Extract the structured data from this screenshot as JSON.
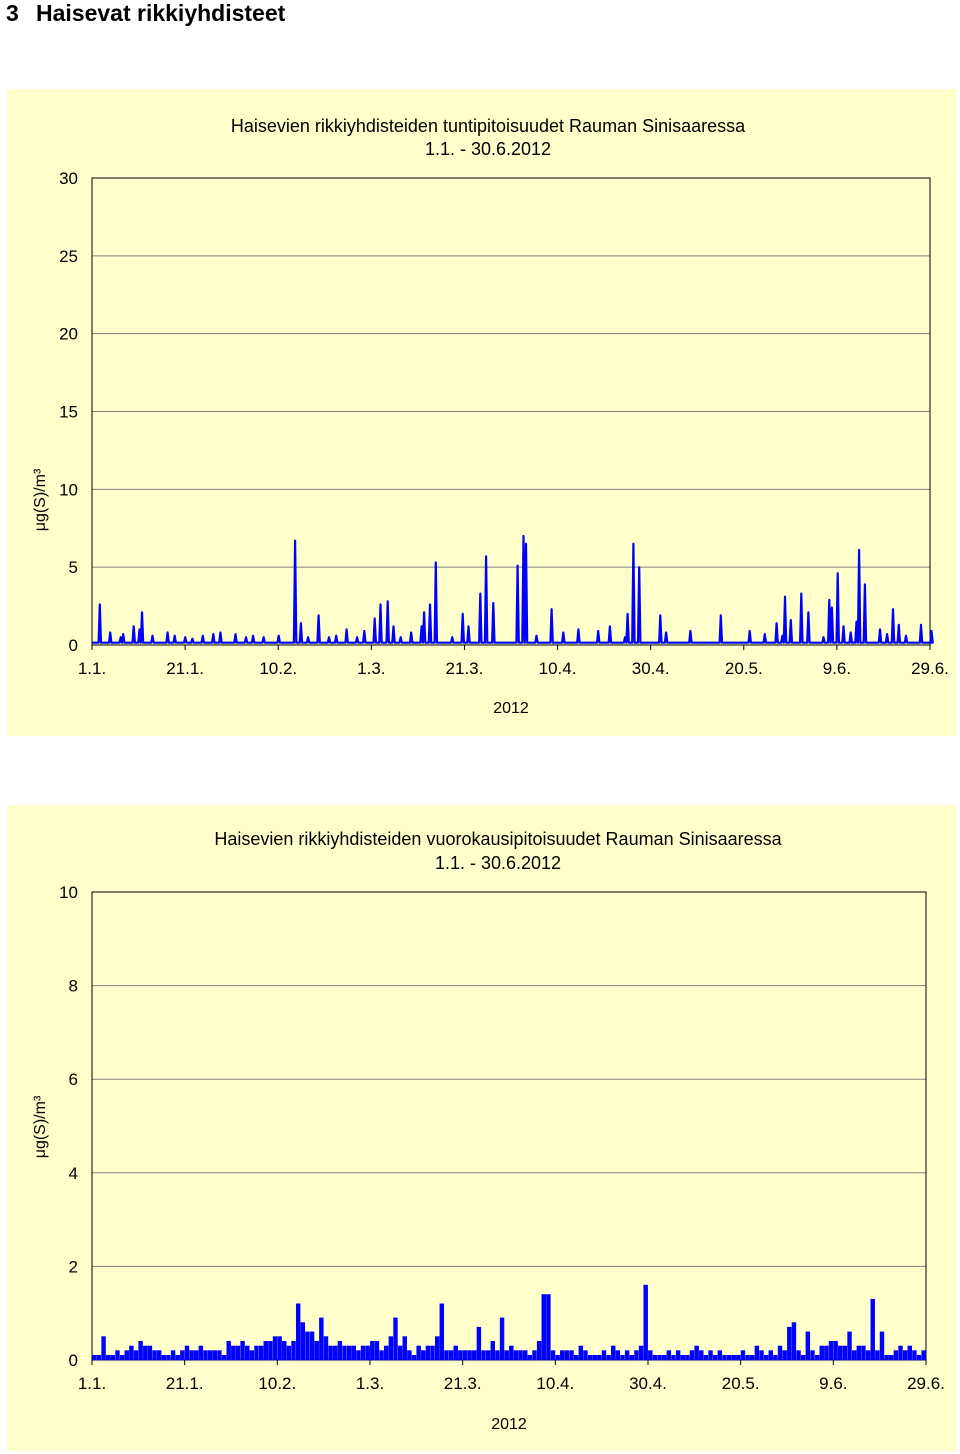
{
  "page": {
    "section_number": "3",
    "section_title": "Haisevat rikkiyhdisteet"
  },
  "chart_data": [
    {
      "type": "line",
      "title": "Haisevien rikkiyhdisteiden tuntipitoisuudet Rauman Sinisaaressa",
      "subtitle": "1.1. - 30.6.2012",
      "xlabel": "2012",
      "ylabel": "μg(S)/m³",
      "ylim": [
        0,
        30
      ],
      "yticks": [
        0,
        5,
        10,
        15,
        20,
        25,
        30
      ],
      "xlim": [
        "2012-01-01",
        "2012-06-30"
      ],
      "xtick_labels": [
        "1.1.",
        "21.1.",
        "10.2.",
        "1.3.",
        "21.3.",
        "10.4.",
        "30.4.",
        "20.5.",
        "9.6.",
        "29.6."
      ],
      "grid": "horizontal",
      "color": "#0000ff",
      "baseline": 0.15,
      "spikes": [
        [
          "2012-01-03",
          2.6
        ],
        [
          "2012-01-05",
          0.8
        ],
        [
          "2012-01-07",
          0.5
        ],
        [
          "2012-01-08",
          0.7
        ],
        [
          "2012-01-10",
          1.2
        ],
        [
          "2012-01-11",
          1.0
        ],
        [
          "2012-01-12",
          2.1
        ],
        [
          "2012-01-14",
          0.6
        ],
        [
          "2012-01-17",
          0.8
        ],
        [
          "2012-01-19",
          0.6
        ],
        [
          "2012-01-21",
          0.5
        ],
        [
          "2012-01-23",
          0.4
        ],
        [
          "2012-01-25",
          0.6
        ],
        [
          "2012-01-27",
          0.7
        ],
        [
          "2012-01-29",
          0.8
        ],
        [
          "2012-02-01",
          0.7
        ],
        [
          "2012-02-03",
          0.5
        ],
        [
          "2012-02-05",
          0.6
        ],
        [
          "2012-02-07",
          0.5
        ],
        [
          "2012-02-10",
          0.6
        ],
        [
          "2012-02-14",
          6.7
        ],
        [
          "2012-02-15",
          1.4
        ],
        [
          "2012-02-17",
          0.5
        ],
        [
          "2012-02-19",
          1.9
        ],
        [
          "2012-02-21",
          0.5
        ],
        [
          "2012-02-23",
          0.6
        ],
        [
          "2012-02-25",
          1.0
        ],
        [
          "2012-02-27",
          0.5
        ],
        [
          "2012-02-29",
          0.9
        ],
        [
          "2012-03-02",
          1.7
        ],
        [
          "2012-03-03",
          2.6
        ],
        [
          "2012-03-05",
          2.8
        ],
        [
          "2012-03-06",
          1.2
        ],
        [
          "2012-03-08",
          0.5
        ],
        [
          "2012-03-10",
          0.8
        ],
        [
          "2012-03-12",
          1.2
        ],
        [
          "2012-03-13",
          2.1
        ],
        [
          "2012-03-14",
          2.6
        ],
        [
          "2012-03-15",
          5.3
        ],
        [
          "2012-03-19",
          0.5
        ],
        [
          "2012-03-21",
          2.0
        ],
        [
          "2012-03-22",
          1.2
        ],
        [
          "2012-03-25",
          3.3
        ],
        [
          "2012-03-26",
          5.7
        ],
        [
          "2012-03-28",
          2.7
        ],
        [
          "2012-04-02",
          5.1
        ],
        [
          "2012-04-03",
          7.0
        ],
        [
          "2012-04-04",
          6.5
        ],
        [
          "2012-04-06",
          0.6
        ],
        [
          "2012-04-09",
          2.3
        ],
        [
          "2012-04-12",
          0.8
        ],
        [
          "2012-04-15",
          1.0
        ],
        [
          "2012-04-19",
          0.9
        ],
        [
          "2012-04-22",
          1.2
        ],
        [
          "2012-04-25",
          0.5
        ],
        [
          "2012-04-26",
          2.0
        ],
        [
          "2012-04-27",
          6.5
        ],
        [
          "2012-04-28",
          5.0
        ],
        [
          "2012-05-03",
          1.9
        ],
        [
          "2012-05-04",
          0.8
        ],
        [
          "2012-05-09",
          0.9
        ],
        [
          "2012-05-16",
          1.9
        ],
        [
          "2012-05-22",
          0.9
        ],
        [
          "2012-05-25",
          0.7
        ],
        [
          "2012-05-28",
          1.4
        ],
        [
          "2012-05-29",
          0.6
        ],
        [
          "2012-05-30",
          3.1
        ],
        [
          "2012-05-31",
          1.6
        ],
        [
          "2012-06-02",
          3.3
        ],
        [
          "2012-06-04",
          2.1
        ],
        [
          "2012-06-07",
          0.5
        ],
        [
          "2012-06-08",
          2.9
        ],
        [
          "2012-06-09",
          2.4
        ],
        [
          "2012-06-10",
          4.6
        ],
        [
          "2012-06-11",
          1.2
        ],
        [
          "2012-06-13",
          0.8
        ],
        [
          "2012-06-14",
          1.5
        ],
        [
          "2012-06-15",
          6.1
        ],
        [
          "2012-06-16",
          3.9
        ],
        [
          "2012-06-19",
          1.0
        ],
        [
          "2012-06-21",
          0.7
        ],
        [
          "2012-06-22",
          2.3
        ],
        [
          "2012-06-23",
          1.3
        ],
        [
          "2012-06-25",
          0.6
        ],
        [
          "2012-06-28",
          1.3
        ],
        [
          "2012-06-30",
          0.9
        ]
      ]
    },
    {
      "type": "bar",
      "title": "Haisevien rikkiyhdisteiden vuorokausipitoisuudet Rauman Sinisaaressa",
      "subtitle": "1.1. - 30.6.2012",
      "xlabel": "2012",
      "ylabel": "μg(S)/m³",
      "ylim": [
        0,
        10
      ],
      "yticks": [
        0,
        2,
        4,
        6,
        8,
        10
      ],
      "xlim": [
        "2012-01-01",
        "2012-06-30"
      ],
      "xtick_labels": [
        "1.1.",
        "21.1.",
        "10.2.",
        "1.3.",
        "21.3.",
        "10.4.",
        "30.4.",
        "20.5.",
        "9.6.",
        "29.6."
      ],
      "grid": "horizontal",
      "color": "#0000ff",
      "values": [
        0.1,
        0.1,
        0.5,
        0.1,
        0.1,
        0.2,
        0.1,
        0.2,
        0.3,
        0.2,
        0.4,
        0.3,
        0.3,
        0.2,
        0.2,
        0.1,
        0.1,
        0.2,
        0.1,
        0.2,
        0.3,
        0.2,
        0.2,
        0.3,
        0.2,
        0.2,
        0.2,
        0.2,
        0.1,
        0.4,
        0.3,
        0.3,
        0.4,
        0.3,
        0.2,
        0.3,
        0.3,
        0.4,
        0.4,
        0.5,
        0.5,
        0.4,
        0.3,
        0.4,
        1.2,
        0.8,
        0.6,
        0.6,
        0.4,
        0.9,
        0.5,
        0.3,
        0.3,
        0.4,
        0.3,
        0.3,
        0.3,
        0.2,
        0.3,
        0.3,
        0.4,
        0.4,
        0.2,
        0.3,
        0.5,
        0.9,
        0.3,
        0.5,
        0.2,
        0.1,
        0.3,
        0.2,
        0.3,
        0.3,
        0.5,
        1.2,
        0.2,
        0.2,
        0.3,
        0.2,
        0.2,
        0.2,
        0.2,
        0.7,
        0.2,
        0.2,
        0.4,
        0.2,
        0.9,
        0.2,
        0.3,
        0.2,
        0.2,
        0.2,
        0.1,
        0.2,
        0.4,
        1.4,
        1.4,
        0.2,
        0.1,
        0.2,
        0.2,
        0.2,
        0.1,
        0.3,
        0.2,
        0.1,
        0.1,
        0.1,
        0.2,
        0.1,
        0.3,
        0.2,
        0.1,
        0.2,
        0.1,
        0.2,
        0.3,
        1.6,
        0.2,
        0.1,
        0.1,
        0.1,
        0.2,
        0.1,
        0.2,
        0.1,
        0.1,
        0.2,
        0.3,
        0.2,
        0.1,
        0.2,
        0.1,
        0.2,
        0.1,
        0.1,
        0.1,
        0.1,
        0.2,
        0.1,
        0.1,
        0.3,
        0.2,
        0.1,
        0.2,
        0.1,
        0.3,
        0.2,
        0.7,
        0.8,
        0.2,
        0.1,
        0.6,
        0.2,
        0.1,
        0.3,
        0.3,
        0.4,
        0.4,
        0.3,
        0.3,
        0.6,
        0.2,
        0.3,
        0.3,
        0.2,
        1.3,
        0.2,
        0.6,
        0.1,
        0.1,
        0.2,
        0.3,
        0.2,
        0.3,
        0.2,
        0.1,
        0.2
      ]
    }
  ]
}
